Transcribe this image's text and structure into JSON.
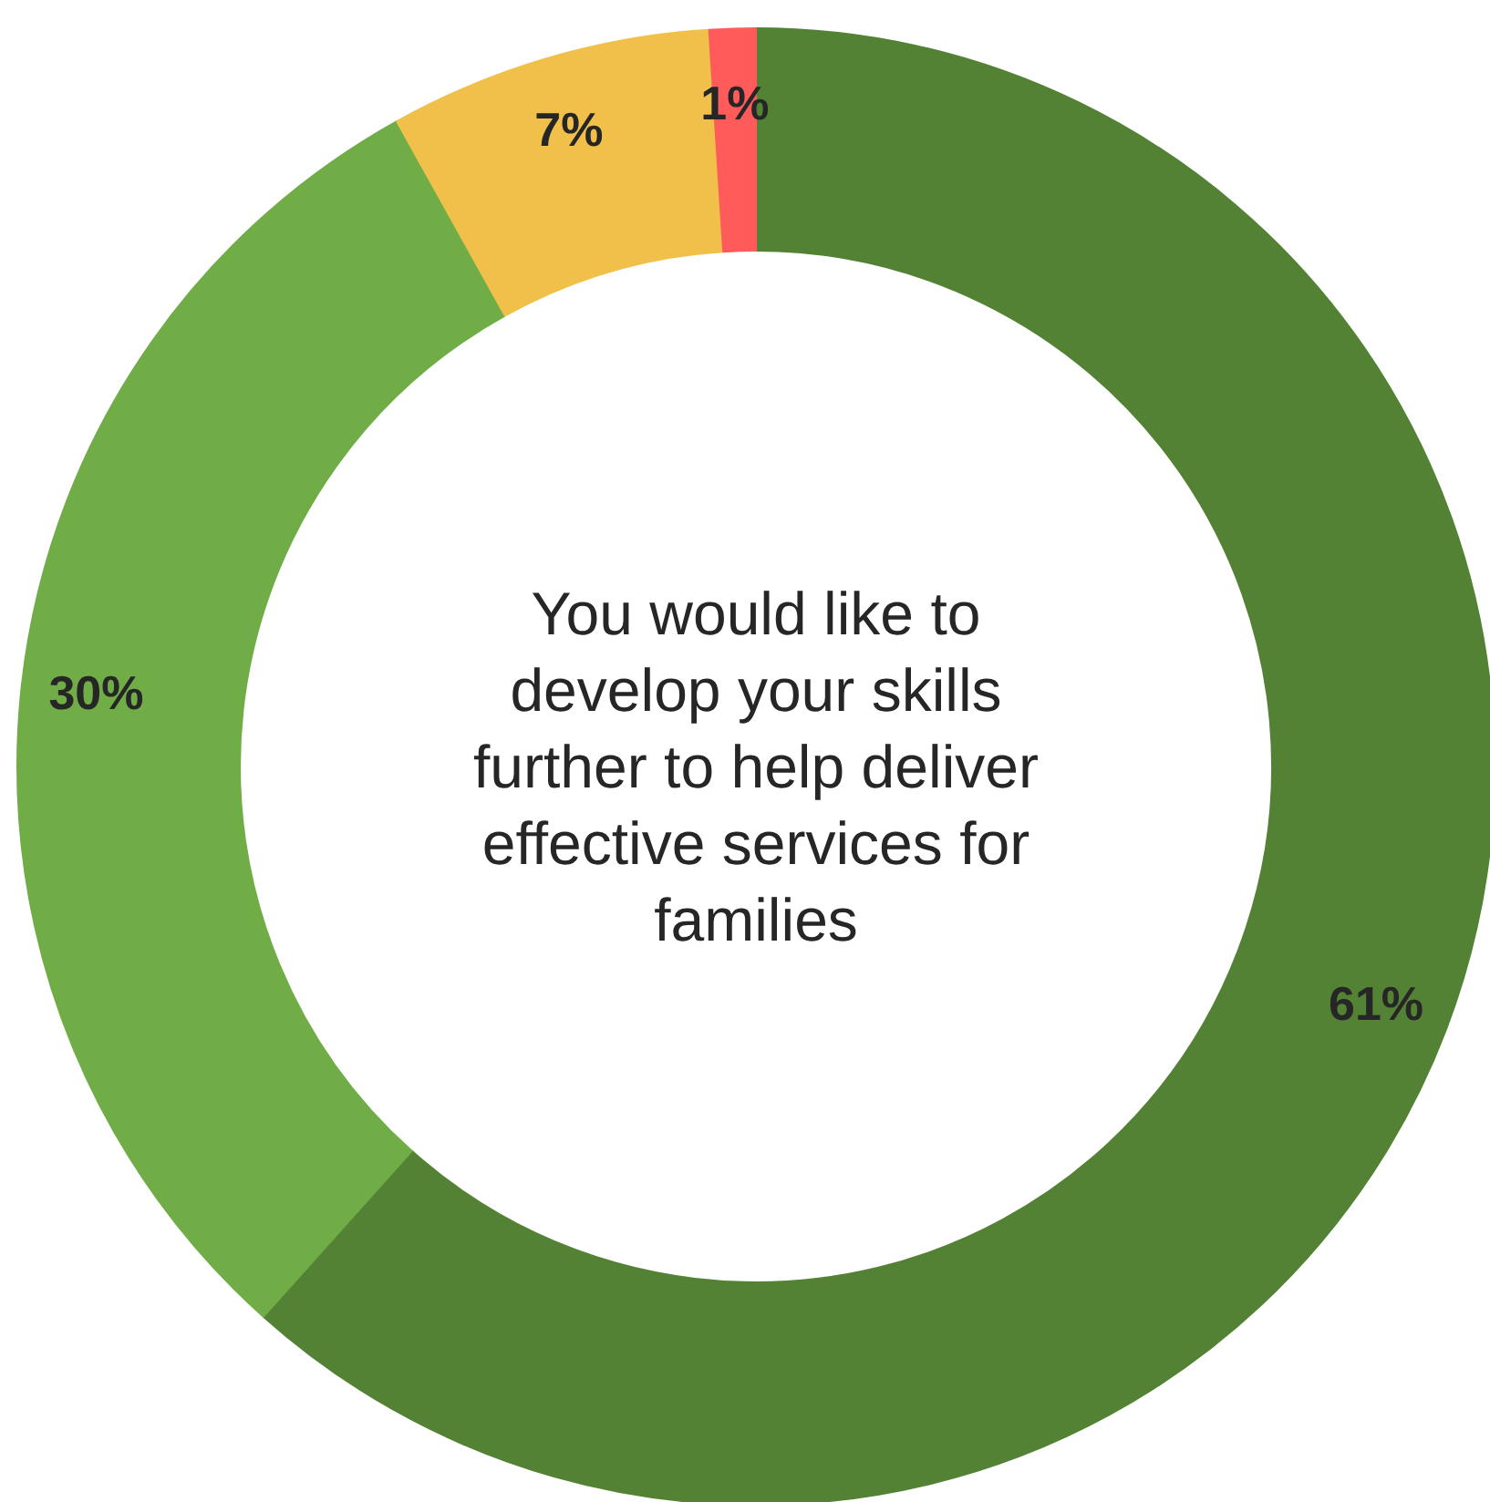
{
  "chart_data": {
    "type": "donut",
    "title": "You would like to develop your skills further to help deliver effective services for families",
    "categories": [
      null,
      null,
      null,
      null
    ],
    "values": [
      61,
      30,
      7,
      1
    ],
    "colors": [
      "#548235",
      "#70ad47",
      "#f0c04a",
      "#ff5b5b"
    ],
    "value_labels": [
      "61%",
      "30%",
      "7%",
      "1%"
    ]
  }
}
